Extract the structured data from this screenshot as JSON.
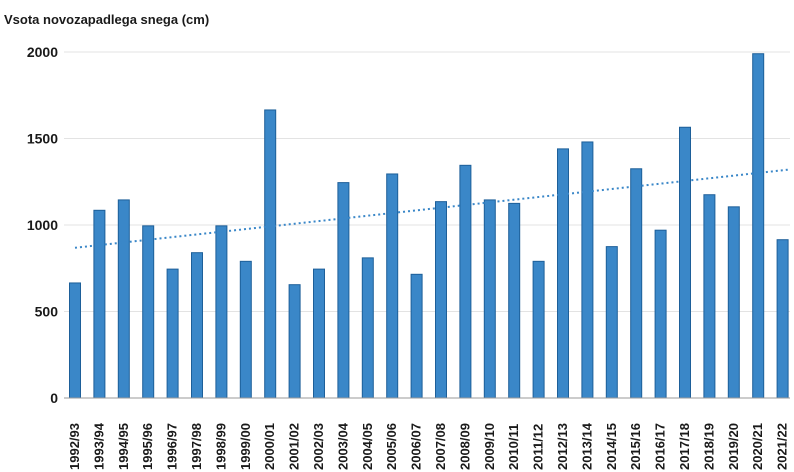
{
  "chart_data": {
    "type": "bar",
    "ylabel": "Vsota novozapadlega snega (cm)",
    "categories": [
      "1992/93",
      "1993/94",
      "1994/95",
      "1995/96",
      "1996/97",
      "1997/98",
      "1998/99",
      "1999/00",
      "2000/01",
      "2001/02",
      "2002/03",
      "2003/04",
      "2004/05",
      "2005/06",
      "2006/07",
      "2007/08",
      "2008/09",
      "2009/10",
      "2010/11",
      "2011/12",
      "2012/13",
      "2013/14",
      "2014/15",
      "2015/16",
      "2016/17",
      "2017/18",
      "2018/19",
      "2019/20",
      "2020/21",
      "2021/22"
    ],
    "values": [
      665,
      1085,
      1145,
      995,
      745,
      840,
      995,
      790,
      1665,
      655,
      745,
      1245,
      810,
      1295,
      715,
      1135,
      1345,
      1145,
      1125,
      790,
      1440,
      1480,
      875,
      1325,
      970,
      1565,
      1175,
      1105,
      1990,
      915
    ],
    "yticks": [
      0,
      500,
      1000,
      1500,
      2000
    ],
    "ylim": [
      0,
      2000
    ],
    "trendline": {
      "type": "linear",
      "style": "dotted"
    },
    "grid": true,
    "colors": {
      "bar": "#3a87c8",
      "bar_edge": "#1d5f99",
      "trend": "#3a87c8",
      "grid": "#e3e3e3",
      "axis": "#9a9a9a"
    }
  }
}
